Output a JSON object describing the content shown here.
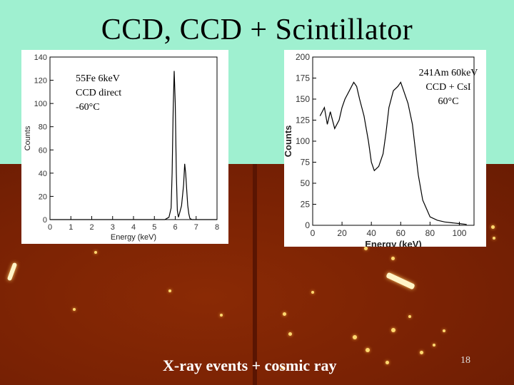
{
  "slide": {
    "title": "CCD,  CCD + Scintillator",
    "caption": "X-ray events + cosmic ray",
    "page_number": "18"
  },
  "colors": {
    "background": "#9ff0d0",
    "ccd_image": "#7a2204",
    "plot_line": "#000000"
  },
  "chart_data": [
    {
      "type": "line",
      "xlabel": "Energy (keV)",
      "ylabel": "Counts",
      "xlim": [
        0,
        8
      ],
      "ylim": [
        0,
        140
      ],
      "xticks": [
        "0",
        "1",
        "2",
        "3",
        "4",
        "5",
        "6",
        "7",
        "8"
      ],
      "yticks": [
        "0",
        "20",
        "40",
        "60",
        "80",
        "100",
        "120",
        "140"
      ],
      "annotation": [
        "55Fe  6keV",
        "CCD direct",
        "-60°C"
      ],
      "series": [
        {
          "x": [
            0,
            5.5,
            5.7,
            5.8,
            5.85,
            5.9,
            5.95,
            6.0,
            6.05,
            6.1,
            6.15,
            6.2,
            6.3,
            6.4,
            6.45,
            6.5,
            6.55,
            6.6,
            6.65,
            6.7,
            6.8,
            8
          ],
          "y": [
            0,
            0,
            2,
            10,
            40,
            95,
            128,
            100,
            40,
            8,
            2,
            5,
            12,
            30,
            48,
            40,
            25,
            12,
            5,
            1,
            0,
            0
          ]
        }
      ]
    },
    {
      "type": "line",
      "xlabel": "Energy (keV)",
      "ylabel": "Counts",
      "xlim": [
        0,
        110
      ],
      "ylim": [
        0,
        200
      ],
      "xticks": [
        "0",
        "20",
        "40",
        "60",
        "80",
        "100"
      ],
      "yticks": [
        "0",
        "25",
        "50",
        "75",
        "100",
        "125",
        "150",
        "175",
        "200"
      ],
      "annotation": [
        "241Am  60keV",
        "CCD + CsI",
        "60°C"
      ],
      "series": [
        {
          "x": [
            5,
            8,
            10,
            12,
            15,
            18,
            20,
            22,
            25,
            28,
            30,
            32,
            35,
            38,
            40,
            42,
            45,
            48,
            50,
            52,
            55,
            58,
            60,
            62,
            65,
            68,
            70,
            72,
            75,
            78,
            80,
            85,
            90,
            95,
            100,
            105
          ],
          "y": [
            130,
            140,
            120,
            135,
            115,
            125,
            140,
            150,
            160,
            170,
            165,
            150,
            130,
            100,
            75,
            65,
            70,
            85,
            110,
            140,
            160,
            165,
            170,
            160,
            145,
            120,
            90,
            60,
            30,
            18,
            10,
            6,
            4,
            3,
            2,
            1
          ]
        }
      ]
    }
  ]
}
